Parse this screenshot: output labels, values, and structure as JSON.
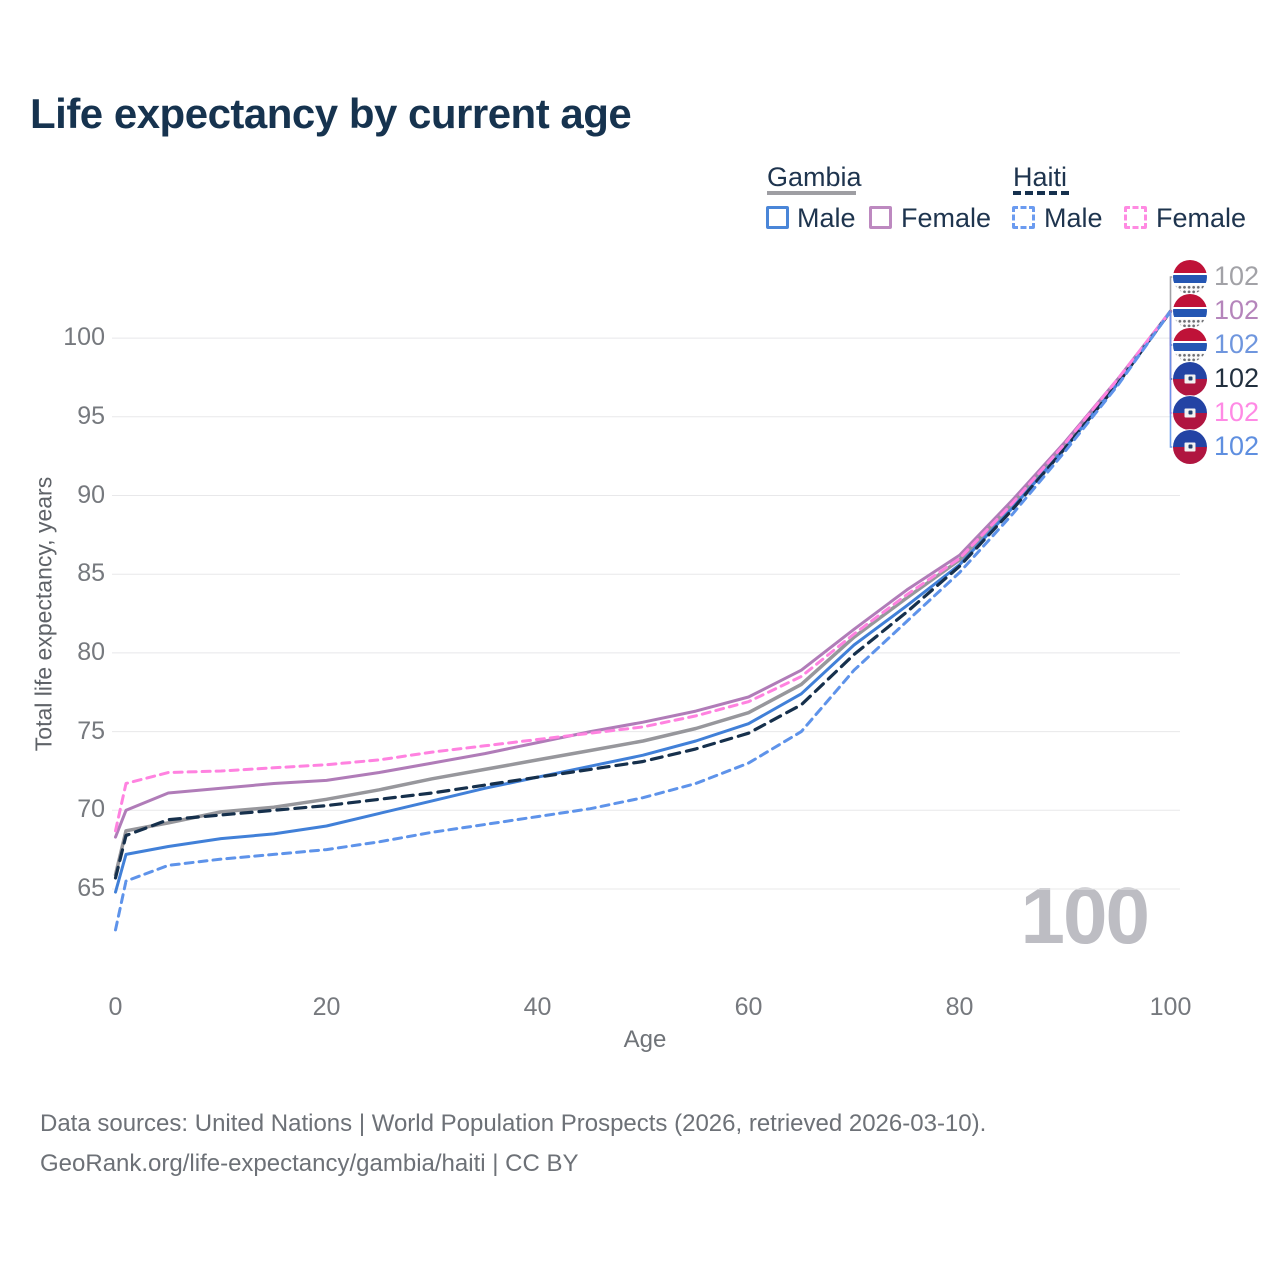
{
  "title": "Life expectancy by current age",
  "legend": {
    "groups": [
      {
        "label": "Gambia",
        "line_style": "solid",
        "underline_color": "#9e9ea3",
        "items": [
          {
            "label": "Male",
            "color": "#4180d8",
            "style": "solid"
          },
          {
            "label": "Female",
            "color": "#bd89c0",
            "style": "solid"
          }
        ]
      },
      {
        "label": "Haiti",
        "line_style": "dashed",
        "underline_color": "#16314e",
        "items": [
          {
            "label": "Male",
            "color": "#6b9bf0",
            "style": "dashed"
          },
          {
            "label": "Female",
            "color": "#ff8ae2",
            "style": "dashed"
          }
        ]
      }
    ]
  },
  "watermark": "100",
  "footer": {
    "line1": "Data sources: United Nations | World Population Prospects (2026, retrieved 2026-03-10).",
    "line2": "GeoRank.org/life-expectancy/gambia/haiti | CC BY"
  },
  "chart_data": {
    "type": "line",
    "title": "Life expectancy by current age",
    "xlabel": "Age",
    "ylabel": "Total life expectancy, years",
    "xlim": [
      0,
      100
    ],
    "ylim": [
      62,
      102.5
    ],
    "xticks": [
      0,
      20,
      40,
      60,
      80,
      100
    ],
    "yticks": [
      65,
      70,
      75,
      80,
      85,
      90,
      95,
      100
    ],
    "grid": true,
    "legend_position": "top-right",
    "x": [
      0,
      1,
      5,
      10,
      15,
      20,
      25,
      30,
      35,
      40,
      45,
      50,
      55,
      60,
      65,
      70,
      75,
      80,
      85,
      90,
      95,
      100
    ],
    "series": [
      {
        "name": "Gambia Both sexes",
        "country": "gambia",
        "sex": "both",
        "style": "solid",
        "color": "#97979c",
        "label_color": "#a2a2a7",
        "width": 3.5,
        "dash": "",
        "end_label": "102",
        "values": [
          65.9,
          68.7,
          69.2,
          69.9,
          70.2,
          70.7,
          71.3,
          72.0,
          72.6,
          73.2,
          73.8,
          74.4,
          75.2,
          76.2,
          78.0,
          81.0,
          83.5,
          85.9,
          89.5,
          93.2,
          97.3,
          101.7
        ]
      },
      {
        "name": "Gambia Female",
        "country": "gambia",
        "sex": "female",
        "style": "solid",
        "color": "#b07cb8",
        "label_color": "#b585bb",
        "width": 3,
        "dash": "",
        "end_label": "102",
        "values": [
          68.3,
          70.0,
          71.1,
          71.4,
          71.7,
          71.9,
          72.4,
          73.0,
          73.6,
          74.3,
          75.0,
          75.6,
          76.3,
          77.2,
          78.9,
          81.5,
          84.0,
          86.2,
          89.7,
          93.4,
          97.4,
          101.7
        ]
      },
      {
        "name": "Gambia Male",
        "country": "gambia",
        "sex": "male",
        "style": "solid",
        "color": "#4180d8",
        "label_color": "#6f96de",
        "width": 3,
        "dash": "",
        "end_label": "102",
        "values": [
          64.8,
          67.2,
          67.7,
          68.2,
          68.5,
          69.0,
          69.8,
          70.6,
          71.4,
          72.1,
          72.8,
          73.5,
          74.4,
          75.5,
          77.4,
          80.5,
          83.0,
          85.6,
          89.2,
          93.0,
          97.1,
          101.7
        ]
      },
      {
        "name": "Haiti Both sexes",
        "country": "haiti",
        "sex": "both",
        "style": "dashed",
        "color": "#16304c",
        "label_color": "#22303f",
        "width": 3.2,
        "dash": "11 7",
        "end_label": "102",
        "values": [
          65.7,
          68.4,
          69.4,
          69.7,
          70.0,
          70.3,
          70.7,
          71.1,
          71.6,
          72.1,
          72.6,
          73.1,
          73.9,
          74.9,
          76.7,
          79.9,
          82.6,
          85.5,
          89.1,
          93.0,
          97.1,
          101.7
        ]
      },
      {
        "name": "Haiti Female",
        "country": "haiti",
        "sex": "female",
        "style": "dashed",
        "color": "#ff82e0",
        "label_color": "#ff8ae5",
        "width": 3,
        "dash": "8 6",
        "end_label": "102",
        "values": [
          68.7,
          71.7,
          72.4,
          72.5,
          72.7,
          72.9,
          73.2,
          73.7,
          74.1,
          74.5,
          74.9,
          75.3,
          76.0,
          76.9,
          78.5,
          81.2,
          83.7,
          86.0,
          89.5,
          93.3,
          97.4,
          101.7
        ]
      },
      {
        "name": "Haiti Male",
        "country": "haiti",
        "sex": "male",
        "style": "dashed",
        "color": "#5e93ea",
        "label_color": "#5f8fe0",
        "width": 3,
        "dash": "8 6",
        "end_label": "102",
        "values": [
          62.4,
          65.5,
          66.5,
          66.9,
          67.2,
          67.5,
          68.0,
          68.6,
          69.1,
          69.6,
          70.1,
          70.8,
          71.7,
          73.0,
          75.0,
          78.9,
          82.0,
          85.1,
          88.8,
          92.8,
          97.0,
          101.7
        ]
      }
    ]
  }
}
